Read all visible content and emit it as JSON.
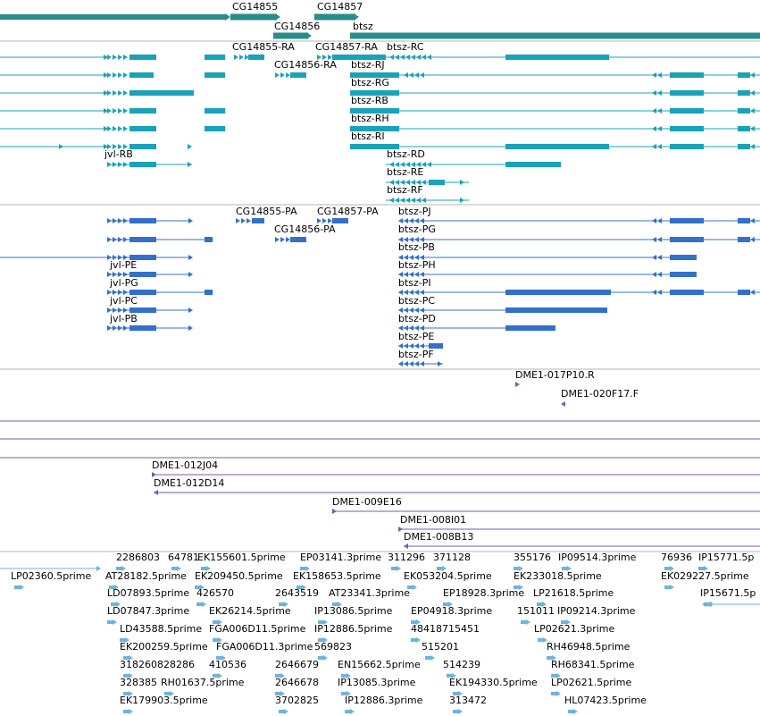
{
  "colors": {
    "gene": "#2a8c8c",
    "rna": "#19a3b8",
    "protein": "#3370cc",
    "clone": "#7d5aa6",
    "est": "#6eb4dc",
    "divider": "#b4b4b4"
  },
  "tracks": {
    "genes": [
      {
        "label": "CG14855",
        "exons": [
          [
            258,
            310
          ]
        ],
        "direction": "right"
      },
      {
        "label": "CG14857",
        "exons": [
          [
            352,
            398
          ]
        ],
        "direction": "right"
      },
      {
        "label": "CG14856",
        "exons": [
          [
            306,
            345
          ]
        ],
        "direction": "right"
      },
      {
        "label": "btsz",
        "exons": [
          [
            392,
            851
          ]
        ],
        "direction": "right"
      }
    ],
    "transcripts": [
      {
        "label": "CG14855-RA"
      },
      {
        "label": "CG14857-RA"
      },
      {
        "label": "btsz-RC"
      },
      {
        "label": "CG14856-RA"
      },
      {
        "label": "btsz-RJ"
      },
      {
        "label": "btsz-RG"
      },
      {
        "label": "btsz-RB"
      },
      {
        "label": "btsz-RH"
      },
      {
        "label": "btsz-RI"
      },
      {
        "label": "jvl-RB"
      },
      {
        "label": "btsz-RD"
      },
      {
        "label": "btsz-RE"
      },
      {
        "label": "btsz-RF"
      }
    ],
    "proteins": [
      {
        "label": "CG14855-PA"
      },
      {
        "label": "CG14857-PA"
      },
      {
        "label": "btsz-PJ"
      },
      {
        "label": "CG14856-PA"
      },
      {
        "label": "btsz-PG"
      },
      {
        "label": "btsz-PB"
      },
      {
        "label": "jvl-PE"
      },
      {
        "label": "btsz-PH"
      },
      {
        "label": "jvl-PG"
      },
      {
        "label": "btsz-PI"
      },
      {
        "label": "jvl-PC"
      },
      {
        "label": "btsz-PC"
      },
      {
        "label": "jvl-PB"
      },
      {
        "label": "btsz-PD"
      },
      {
        "label": "btsz-PE"
      },
      {
        "label": "btsz-PF"
      }
    ],
    "clones": [
      {
        "label": "DME1-017P10.R"
      },
      {
        "label": "DME1-020F17.F"
      },
      {
        "label": "DME1-012J04"
      },
      {
        "label": "DME1-012D14"
      },
      {
        "label": "DME1-009E16"
      },
      {
        "label": "DME1-008I01"
      },
      {
        "label": "DME1-008B13"
      }
    ],
    "ests": [
      {
        "label": "2286803"
      },
      {
        "label": "64781"
      },
      {
        "label": "EK155601.5prime"
      },
      {
        "label": "EP03141.3prime"
      },
      {
        "label": "311296"
      },
      {
        "label": "371128"
      },
      {
        "label": "355176"
      },
      {
        "label": "IP09514.3prime"
      },
      {
        "label": "76936"
      },
      {
        "label": "IP15771.5p"
      },
      {
        "label": "LP02360.5prime"
      },
      {
        "label": "AT28182.5prime"
      },
      {
        "label": "EK209450.5prime"
      },
      {
        "label": "EK158653.5prime"
      },
      {
        "label": "EK053204.5prime"
      },
      {
        "label": "EK233018.5prime"
      },
      {
        "label": "EK029227.5prime"
      },
      {
        "label": "LD07893.5prime"
      },
      {
        "label": "426570"
      },
      {
        "label": "2643519"
      },
      {
        "label": "AT23341.3prime"
      },
      {
        "label": "EP18928.3prime"
      },
      {
        "label": "LP21618.5prime"
      },
      {
        "label": "IP15671.5p"
      },
      {
        "label": "LD07847.3prime"
      },
      {
        "label": "EK26214.5prime"
      },
      {
        "label": "IP13086.5prime"
      },
      {
        "label": "EP04918.3prime"
      },
      {
        "label": "151011"
      },
      {
        "label": "IP09214.3prime"
      },
      {
        "label": "LD43588.5prime"
      },
      {
        "label": "FGA006D11.5prime"
      },
      {
        "label": "IP12886.5prime"
      },
      {
        "label": "48418715451"
      },
      {
        "label": "LP02621.3prime"
      },
      {
        "label": "EK200259.5prime"
      },
      {
        "label": "FGA006D11.3prime"
      },
      {
        "label": "569823"
      },
      {
        "label": "515201"
      },
      {
        "label": "RH46948.5prime"
      },
      {
        "label": "318260828286"
      },
      {
        "label": "410536"
      },
      {
        "label": "2646679"
      },
      {
        "label": "EN15662.5prime"
      },
      {
        "label": "514239"
      },
      {
        "label": "RH68341.5prime"
      },
      {
        "label": "328385"
      },
      {
        "label": "RH01637.5prime"
      },
      {
        "label": "2646678"
      },
      {
        "label": "IP13085.3prime"
      },
      {
        "label": "EK194330.5prime"
      },
      {
        "label": "LP02621.5prime"
      },
      {
        "label": "EK179903.5prime"
      },
      {
        "label": "3702825"
      },
      {
        "label": "IP12886.3prime"
      },
      {
        "label": "313472"
      },
      {
        "label": "HL07423.5prime"
      }
    ]
  }
}
